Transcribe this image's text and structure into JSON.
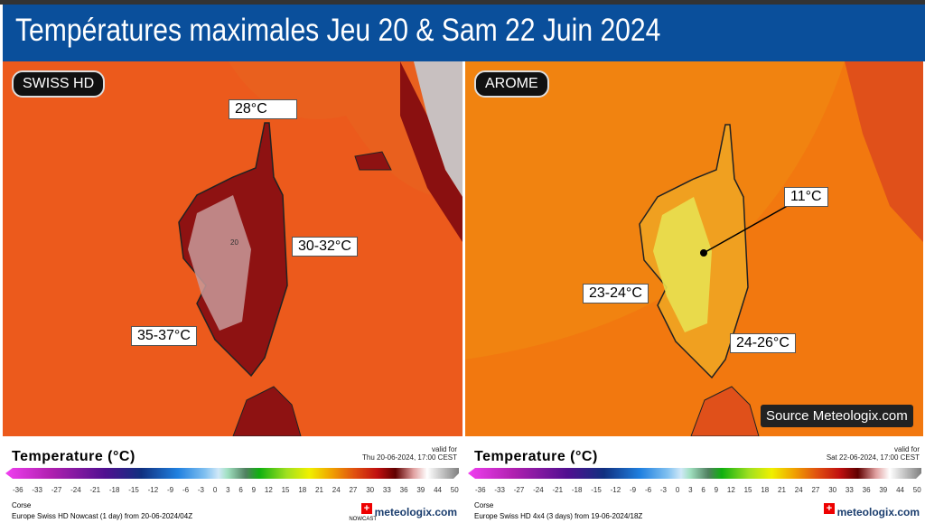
{
  "title": "Températures maximales Jeu 20 & Sam 22 Juin 2024",
  "colors": {
    "title_bar": "#0a4f9b",
    "sea_left": "#ec5a1c",
    "sea_right": "#f2780f"
  },
  "panels": [
    {
      "model": "SWISS HD",
      "labels": [
        "28°C",
        "30-32°C",
        "35-37°C"
      ],
      "island_max": "20",
      "legend": {
        "title": "Temperature (°C)",
        "valid_label": "valid for",
        "valid": "Thu 20-06-2024, 17:00 CEST",
        "region": "Corse",
        "run": "Europe Swiss HD Nowcast (1 day) from 20-06-2024/04Z",
        "badge": "NOWCAST",
        "brand": "meteologix.com"
      }
    },
    {
      "model": "AROME",
      "labels": [
        "11°C",
        "23-24°C",
        "24-26°C"
      ],
      "source": "Source Meteologix.com",
      "legend": {
        "title": "Temperature (°C)",
        "valid_label": "valid for",
        "valid": "Sat 22-06-2024, 17:00 CEST",
        "region": "Corse",
        "run": "Europe Swiss HD 4x4 (3 days) from 19-06-2024/18Z",
        "brand": "meteologix.com"
      }
    }
  ],
  "scale_ticks": [
    "-36",
    "-33",
    "-27",
    "-24",
    "-21",
    "-18",
    "-15",
    "-12",
    "-9",
    "-6",
    "-3",
    "0",
    "3",
    "6",
    "9",
    "12",
    "15",
    "18",
    "21",
    "24",
    "27",
    "30",
    "33",
    "36",
    "39",
    "44",
    "50"
  ]
}
